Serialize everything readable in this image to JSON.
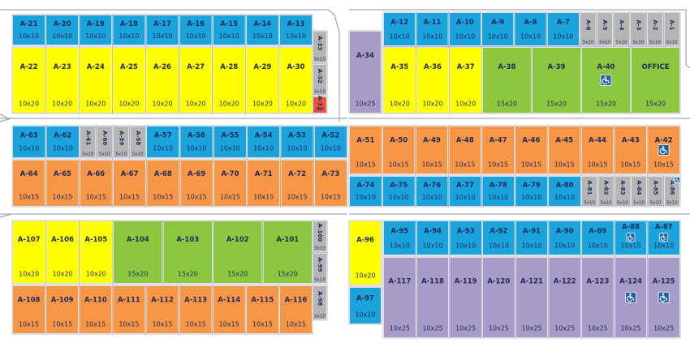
{
  "groups": [
    {
      "color": "#1aa3dc",
      "units": [
        {
          "label": "A-21",
          "size": "10x10"
        },
        {
          "label": "A-20",
          "size": "10x10"
        },
        {
          "label": "A-19",
          "size": "10x10"
        },
        {
          "label": "A-18",
          "size": "10x10"
        },
        {
          "label": "A-17",
          "size": "10x10"
        },
        {
          "label": "A-16",
          "size": "10x10"
        },
        {
          "label": "A-15",
          "size": "10x10"
        },
        {
          "label": "A-14",
          "size": "10x10"
        },
        {
          "label": "A-13",
          "size": "10x10"
        }
      ]
    },
    {
      "color": "#ffff00",
      "units": [
        {
          "label": "A-22",
          "size": "10x20"
        },
        {
          "label": "A-23",
          "size": "10x20"
        },
        {
          "label": "A-24",
          "size": "10x20"
        },
        {
          "label": "A-25",
          "size": "10x20"
        },
        {
          "label": "A-26",
          "size": "10x20"
        },
        {
          "label": "A-27",
          "size": "10x20"
        },
        {
          "label": "A-28",
          "size": "10x20"
        },
        {
          "label": "A-29",
          "size": "10x20"
        },
        {
          "label": "A-30",
          "size": "10x20"
        }
      ]
    },
    {
      "color": "#b5b5b5",
      "units": [
        {
          "label": "A-33",
          "size": "5x10"
        },
        {
          "label": "A-32",
          "size": "5x10"
        }
      ]
    },
    {
      "color": "#e8553e",
      "units": [
        {
          "label": "A-31",
          "size": "5x5"
        }
      ]
    },
    {
      "color": "#a99bc8",
      "units": [
        {
          "label": "A-34",
          "size": "10x25"
        }
      ]
    },
    {
      "color": "#1aa3dc",
      "units": [
        {
          "label": "A-12",
          "size": "10x10"
        },
        {
          "label": "A-11",
          "size": "10x10"
        },
        {
          "label": "A-10",
          "size": "10x10"
        },
        {
          "label": "A-9",
          "size": "10x10"
        },
        {
          "label": "A-8",
          "size": "10x10"
        },
        {
          "label": "A-7",
          "size": "10x10"
        }
      ]
    },
    {
      "color": "#b5b5b5",
      "units": [
        {
          "label": "A-6",
          "size": "5x10"
        },
        {
          "label": "A-5",
          "size": "5x10"
        },
        {
          "label": "A-4",
          "size": "5x10"
        },
        {
          "label": "A-3",
          "size": "5x10"
        },
        {
          "label": "A-2",
          "size": "5x10"
        },
        {
          "label": "A-1",
          "size": "5x10"
        }
      ]
    },
    {
      "color": "#ffff00",
      "units": [
        {
          "label": "A-35",
          "size": "10x20"
        },
        {
          "label": "A-36",
          "size": "10x20"
        },
        {
          "label": "A-37",
          "size": "10x20"
        }
      ]
    },
    {
      "color": "#8dc63f",
      "units": [
        {
          "label": "A-38",
          "size": "15x20"
        },
        {
          "label": "A-39",
          "size": "15x20"
        },
        {
          "label": "A-40",
          "size": "15x20",
          "accessible": true
        },
        {
          "label": "OFFICE",
          "size": "15x20"
        }
      ]
    },
    {
      "color": "#1aa3dc",
      "units": [
        {
          "label": "A-63",
          "size": "10x10"
        },
        {
          "label": "A-62",
          "size": "10x10"
        }
      ]
    },
    {
      "color": "#b5b5b5",
      "units": [
        {
          "label": "A-61",
          "size": "5x10"
        },
        {
          "label": "A-60",
          "size": "5x10"
        },
        {
          "label": "A-59",
          "size": "5x10"
        },
        {
          "label": "A-58",
          "size": "5x10"
        }
      ]
    },
    {
      "color": "#1aa3dc",
      "units": [
        {
          "label": "A-57",
          "size": "10x10"
        },
        {
          "label": "A-56",
          "size": "10x10"
        },
        {
          "label": "A-55",
          "size": "10x10"
        },
        {
          "label": "A-54",
          "size": "10x10"
        },
        {
          "label": "A-53",
          "size": "10x10"
        },
        {
          "label": "A-52",
          "size": "10x10"
        }
      ]
    },
    {
      "color": "#f79646",
      "units": [
        {
          "label": "A-64",
          "size": "10x15"
        },
        {
          "label": "A-65",
          "size": "10x15"
        },
        {
          "label": "A-66",
          "size": "10x15"
        },
        {
          "label": "A-67",
          "size": "10x15"
        },
        {
          "label": "A-68",
          "size": "10x15"
        },
        {
          "label": "A-69",
          "size": "10x15"
        },
        {
          "label": "A-70",
          "size": "10x15"
        },
        {
          "label": "A-71",
          "size": "10x15"
        },
        {
          "label": "A-72",
          "size": "10x15"
        },
        {
          "label": "A-73",
          "size": "10x15"
        }
      ]
    },
    {
      "color": "#f79646",
      "units": [
        {
          "label": "A-51",
          "size": "10x15"
        },
        {
          "label": "A-50",
          "size": "10x15"
        },
        {
          "label": "A-49",
          "size": "10x15"
        },
        {
          "label": "A-48",
          "size": "10x15"
        },
        {
          "label": "A-47",
          "size": "10x15"
        },
        {
          "label": "A-46",
          "size": "10x15"
        },
        {
          "label": "A-45",
          "size": "10x15"
        },
        {
          "label": "A-44",
          "size": "10x15"
        },
        {
          "label": "A-43",
          "size": "10x15"
        },
        {
          "label": "A-42",
          "size": "10x15",
          "accessible": true
        }
      ]
    },
    {
      "color": "#1aa3dc",
      "units": [
        {
          "label": "A-74",
          "size": "10x10"
        },
        {
          "label": "A-75",
          "size": "10x10"
        },
        {
          "label": "A-76",
          "size": "10x10"
        },
        {
          "label": "A-77",
          "size": "10x10"
        },
        {
          "label": "A-78",
          "size": "10x10"
        },
        {
          "label": "A-79",
          "size": "10x10"
        },
        {
          "label": "A-80",
          "size": "10x10"
        }
      ]
    },
    {
      "color": "#b5b5b5",
      "units": [
        {
          "label": "A-81",
          "size": "5x10"
        },
        {
          "label": "A-82",
          "size": "5x10"
        },
        {
          "label": "A-83",
          "size": "5x10"
        },
        {
          "label": "A-84",
          "size": "5x10"
        },
        {
          "label": "A-85",
          "size": "5x10"
        },
        {
          "label": "A-86",
          "size": "5x10",
          "accessible": true
        }
      ]
    },
    {
      "color": "#ffff00",
      "units": [
        {
          "label": "A-107",
          "size": "10x20"
        },
        {
          "label": "A-106",
          "size": "10x20"
        },
        {
          "label": "A-105",
          "size": "10x20"
        }
      ]
    },
    {
      "color": "#8dc63f",
      "units": [
        {
          "label": "A-104",
          "size": "15x20"
        },
        {
          "label": "A-103",
          "size": "15x20"
        },
        {
          "label": "A-102",
          "size": "15x20"
        },
        {
          "label": "A-101",
          "size": "15x20"
        }
      ]
    },
    {
      "color": "#b5b5b5",
      "units": [
        {
          "label": "A-100",
          "size": "5x10"
        },
        {
          "label": "A-99",
          "size": "5x10"
        },
        {
          "label": "A-98",
          "size": "5x10"
        }
      ]
    },
    {
      "color": "#f79646",
      "units": [
        {
          "label": "A-108",
          "size": "10x15"
        },
        {
          "label": "A-109",
          "size": "10x15"
        },
        {
          "label": "A-110",
          "size": "10x15"
        },
        {
          "label": "A-111",
          "size": "10x15"
        },
        {
          "label": "A-112",
          "size": "10x15"
        },
        {
          "label": "A-113",
          "size": "10x15"
        },
        {
          "label": "A-114",
          "size": "10x15"
        },
        {
          "label": "A-115",
          "size": "10x15"
        },
        {
          "label": "A-116",
          "size": "10x15"
        }
      ]
    },
    {
      "color": "#ffff00",
      "units": [
        {
          "label": "A-96",
          "size": "10x20"
        }
      ]
    },
    {
      "color": "#1aa3dc",
      "units": [
        {
          "label": "A-97",
          "size": "10x10"
        }
      ]
    },
    {
      "color": "#1aa3dc",
      "units": [
        {
          "label": "A-95",
          "size": "10x10"
        },
        {
          "label": "A-94",
          "size": "10x10"
        },
        {
          "label": "A-93",
          "size": "10x10"
        },
        {
          "label": "A-92",
          "size": "10x10"
        },
        {
          "label": "A-91",
          "size": "10x10"
        },
        {
          "label": "A-90",
          "size": "10x10"
        },
        {
          "label": "A-89",
          "size": "10x10"
        },
        {
          "label": "A-88",
          "size": "10x10",
          "accessible": true
        },
        {
          "label": "A-87",
          "size": "10x10",
          "accessible": true
        }
      ]
    },
    {
      "color": "#a99bc8",
      "units": [
        {
          "label": "A-117",
          "size": "10x25"
        },
        {
          "label": "A-118",
          "size": "10x25"
        },
        {
          "label": "A-119",
          "size": "10x25"
        },
        {
          "label": "A-120",
          "size": "10x25"
        },
        {
          "label": "A-121",
          "size": "10x25"
        },
        {
          "label": "A-122",
          "size": "10x25"
        },
        {
          "label": "A-123",
          "size": "10x25"
        },
        {
          "label": "A-124",
          "size": "10x25",
          "accessible": true
        },
        {
          "label": "A-125",
          "size": "10x25",
          "accessible": true
        }
      ]
    }
  ]
}
